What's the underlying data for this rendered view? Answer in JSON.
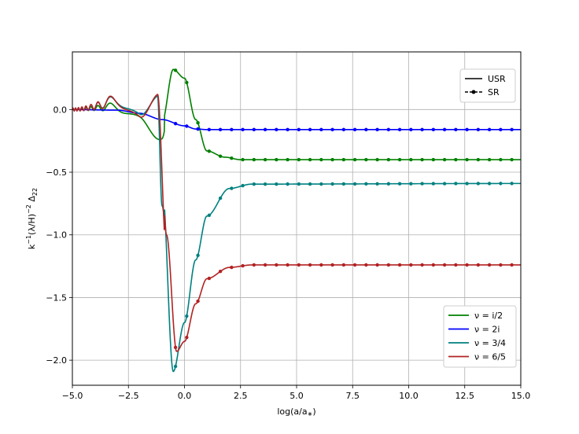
{
  "chart_data": {
    "type": "line",
    "title": "",
    "xlabel": "log(a/a∗)",
    "ylabel": "k⁻¹(λ/H)⁻² Δ₂₂",
    "xlim": [
      -5.0,
      15.0
    ],
    "ylim": [
      -2.2,
      0.46
    ],
    "grid": true,
    "x_ticks": [
      -5.0,
      -2.5,
      0.0,
      2.5,
      5.0,
      7.5,
      10.0,
      12.5,
      15.0
    ],
    "x_tick_labels": [
      "−5.0",
      "−2.5",
      "0.0",
      "2.5",
      "5.0",
      "7.5",
      "10.0",
      "12.5",
      "15.0"
    ],
    "y_ticks": [
      0.0,
      -0.5,
      -1.0,
      -1.5,
      -2.0
    ],
    "y_tick_labels": [
      "0.0",
      "−0.5",
      "−1.0",
      "−1.5",
      "−2.0"
    ],
    "style_legend": {
      "placement": "upper-right",
      "entries": [
        {
          "label": "USR",
          "style": "solid"
        },
        {
          "label": "SR",
          "style": "dashed-dot-marker"
        }
      ]
    },
    "series_legend": {
      "placement": "lower-right",
      "entries": [
        "ν = i/2",
        "ν = 2i",
        "ν = 3/4",
        "ν = 6/5"
      ]
    },
    "series": [
      {
        "name": "ν = i/2",
        "color": "#008000",
        "final": -0.4,
        "trough": -0.2,
        "peak": 0.32,
        "peak_x": -0.5,
        "envelope": 0.22,
        "points": [
          [
            -5.0,
            0.0
          ],
          [
            -3.0,
            0.02
          ],
          [
            -2.0,
            0.05
          ],
          [
            -1.0,
            -0.1
          ],
          [
            -0.5,
            0.32
          ],
          [
            0.0,
            0.25
          ],
          [
            0.5,
            -0.08
          ],
          [
            1.0,
            -0.33
          ],
          [
            1.8,
            -0.38
          ],
          [
            2.5,
            -0.4
          ],
          [
            15.0,
            -0.4
          ]
        ]
      },
      {
        "name": "ν = 2i",
        "color": "#0000ff",
        "final": -0.16,
        "points": [
          [
            -5.0,
            0.0
          ],
          [
            -3.0,
            -0.005
          ],
          [
            -2.0,
            -0.03
          ],
          [
            -1.0,
            -0.08
          ],
          [
            0.0,
            -0.13
          ],
          [
            0.5,
            -0.155
          ],
          [
            1.0,
            -0.16
          ],
          [
            15.0,
            -0.16
          ]
        ]
      },
      {
        "name": "ν = 3/4",
        "color": "#008080",
        "final": -0.59,
        "trough": -2.09,
        "trough_x": -0.5,
        "envelope": 0.28,
        "points": [
          [
            -5.0,
            0.0
          ],
          [
            -2.0,
            0.1
          ],
          [
            -1.2,
            0.3
          ],
          [
            -1.0,
            -0.6
          ],
          [
            -0.5,
            -2.09
          ],
          [
            0.0,
            -1.7
          ],
          [
            0.5,
            -1.2
          ],
          [
            1.0,
            -0.85
          ],
          [
            2.0,
            -0.63
          ],
          [
            3.0,
            -0.595
          ],
          [
            15.0,
            -0.59
          ]
        ]
      },
      {
        "name": "ν = 6/5",
        "color": "#b22222",
        "final": -1.24,
        "trough": -1.93,
        "trough_x": -0.35,
        "envelope": 0.32,
        "points": [
          [
            -5.0,
            0.0
          ],
          [
            -2.0,
            0.1
          ],
          [
            -1.2,
            0.34
          ],
          [
            -0.8,
            -1.0
          ],
          [
            -0.35,
            -1.93
          ],
          [
            0.0,
            -1.85
          ],
          [
            0.5,
            -1.55
          ],
          [
            1.0,
            -1.35
          ],
          [
            2.0,
            -1.26
          ],
          [
            3.0,
            -1.24
          ],
          [
            15.0,
            -1.24
          ]
        ]
      }
    ]
  }
}
